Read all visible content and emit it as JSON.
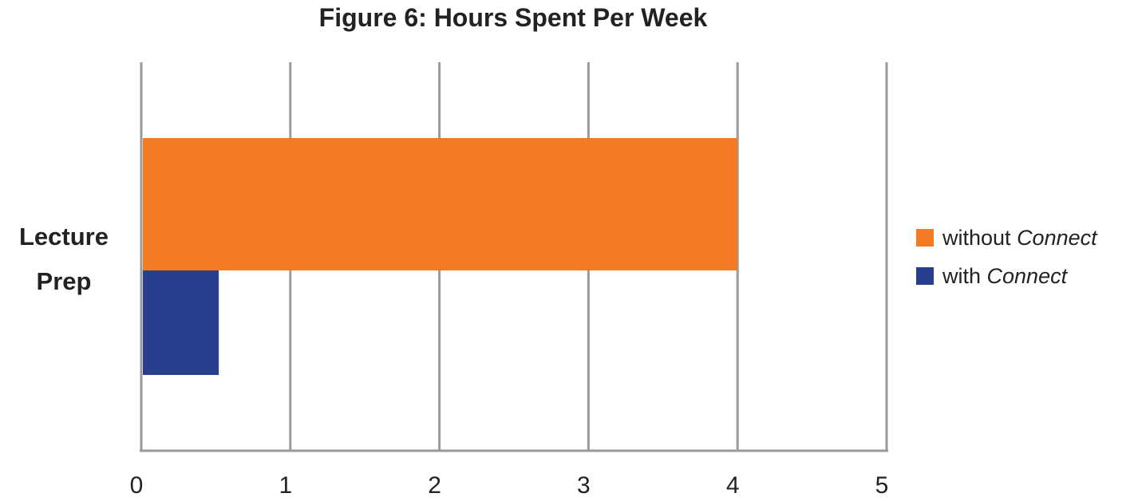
{
  "chart_data": {
    "type": "bar",
    "orientation": "horizontal",
    "title": "Figure 6: Hours Spent Per Week",
    "categories": [
      {
        "lines": [
          "Lecture",
          "Prep"
        ]
      }
    ],
    "series": [
      {
        "name_parts": [
          "without ",
          "Connect"
        ],
        "values": [
          4
        ],
        "color": "#f27b24"
      },
      {
        "name_parts": [
          "with ",
          "Connect"
        ],
        "values": [
          0.52
        ],
        "color": "#273f8d"
      }
    ],
    "xlim": [
      0,
      5
    ],
    "ticks": [
      "0",
      "1",
      "2",
      "3",
      "4",
      "5"
    ],
    "grid": true,
    "legend_position": "right"
  }
}
